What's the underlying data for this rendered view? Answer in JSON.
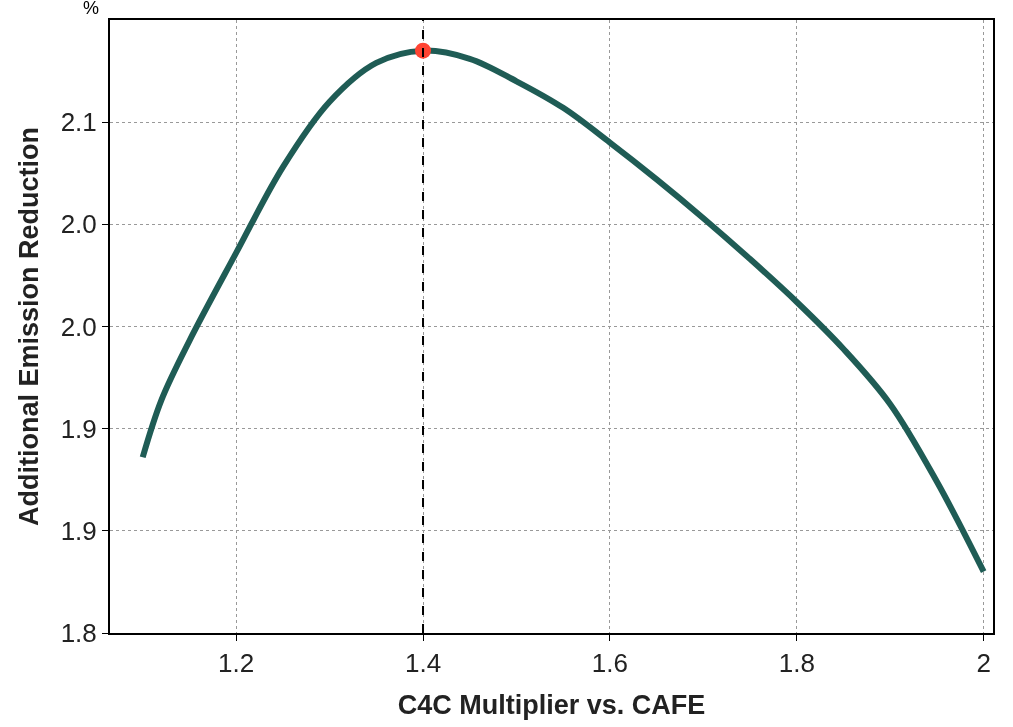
{
  "chart_data": {
    "type": "line",
    "xlabel": "C4C Multiplier vs. CAFE",
    "ylabel": "Additional Emission Reduction",
    "annotations": [
      "%"
    ],
    "series": [
      {
        "color": "#1f5c55",
        "x": [
          1.1,
          1.12,
          1.15,
          1.2,
          1.25,
          1.3,
          1.35,
          1.4,
          1.45,
          1.5,
          1.55,
          1.6,
          1.65,
          1.7,
          1.75,
          1.8,
          1.85,
          1.9,
          1.95,
          2.0
        ],
        "values": [
          1.886,
          1.914,
          1.943,
          1.986,
          2.028,
          2.06,
          2.079,
          2.085,
          2.081,
          2.07,
          2.057,
          2.04,
          2.022,
          2.003,
          1.983,
          1.962,
          1.939,
          1.912,
          1.874,
          1.83
        ],
        "line_style": "solid",
        "marker": "none"
      },
      {
        "type": "scatter",
        "color": "#ff4433",
        "x": [
          1.4
        ],
        "values": [
          2.085
        ],
        "marker": "circle"
      }
    ],
    "xlim": [
      1.065,
      2.01
    ],
    "xticks": [
      1.2,
      1.4,
      1.6,
      1.8,
      2
    ],
    "ylim": [
      1.8,
      2.1
    ],
    "yticks": [
      1.8,
      {
        "value": 1.85,
        "label": "1.9"
      },
      1.9,
      {
        "value": 1.95,
        "label": "2.0"
      },
      {
        "value": 2.0,
        "label": "2.0"
      },
      {
        "value": 2.05,
        "label": "2.1"
      }
    ],
    "ref_lines": [
      {
        "axis": "x",
        "value": 1.4,
        "color": "#000000",
        "line_style": "dashed"
      }
    ],
    "grid": true
  }
}
